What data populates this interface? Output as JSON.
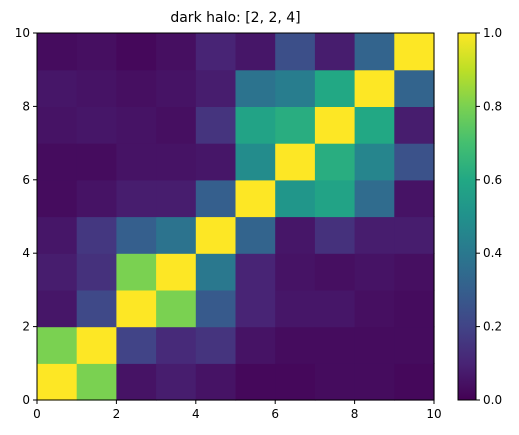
{
  "chart_data": {
    "type": "heatmap",
    "title": "dark halo: [2, 2, 4]",
    "xlabel": "",
    "ylabel": "",
    "xlim": [
      0,
      10
    ],
    "ylim": [
      0,
      10
    ],
    "xticks": [
      "0",
      "2",
      "4",
      "6",
      "8",
      "10"
    ],
    "yticks": [
      "0",
      "2",
      "4",
      "6",
      "8",
      "10"
    ],
    "colormap": "viridis",
    "clim": [
      0,
      1
    ],
    "colorbar_ticks": [
      "0.0",
      "0.2",
      "0.4",
      "0.6",
      "0.8",
      "1.0"
    ],
    "grid": false,
    "matrix_row_order": "bottom_to_top",
    "matrix": [
      [
        1.0,
        0.8,
        0.05,
        0.08,
        0.05,
        0.02,
        0.02,
        0.03,
        0.03,
        0.02
      ],
      [
        0.8,
        1.0,
        0.2,
        0.12,
        0.15,
        0.05,
        0.03,
        0.03,
        0.03,
        0.03
      ],
      [
        0.06,
        0.22,
        1.0,
        0.8,
        0.28,
        0.1,
        0.06,
        0.06,
        0.04,
        0.03
      ],
      [
        0.08,
        0.14,
        0.8,
        1.0,
        0.4,
        0.1,
        0.05,
        0.04,
        0.05,
        0.04
      ],
      [
        0.06,
        0.16,
        0.3,
        0.38,
        1.0,
        0.32,
        0.06,
        0.14,
        0.08,
        0.08
      ],
      [
        0.03,
        0.05,
        0.08,
        0.08,
        0.3,
        1.0,
        0.52,
        0.58,
        0.35,
        0.05
      ],
      [
        0.03,
        0.03,
        0.05,
        0.05,
        0.06,
        0.48,
        1.0,
        0.62,
        0.45,
        0.25
      ],
      [
        0.05,
        0.06,
        0.05,
        0.04,
        0.15,
        0.58,
        0.62,
        1.0,
        0.6,
        0.08
      ],
      [
        0.06,
        0.05,
        0.04,
        0.05,
        0.08,
        0.38,
        0.42,
        0.6,
        1.0,
        0.32
      ],
      [
        0.03,
        0.04,
        0.02,
        0.04,
        0.1,
        0.06,
        0.24,
        0.08,
        0.32,
        1.0
      ]
    ]
  }
}
